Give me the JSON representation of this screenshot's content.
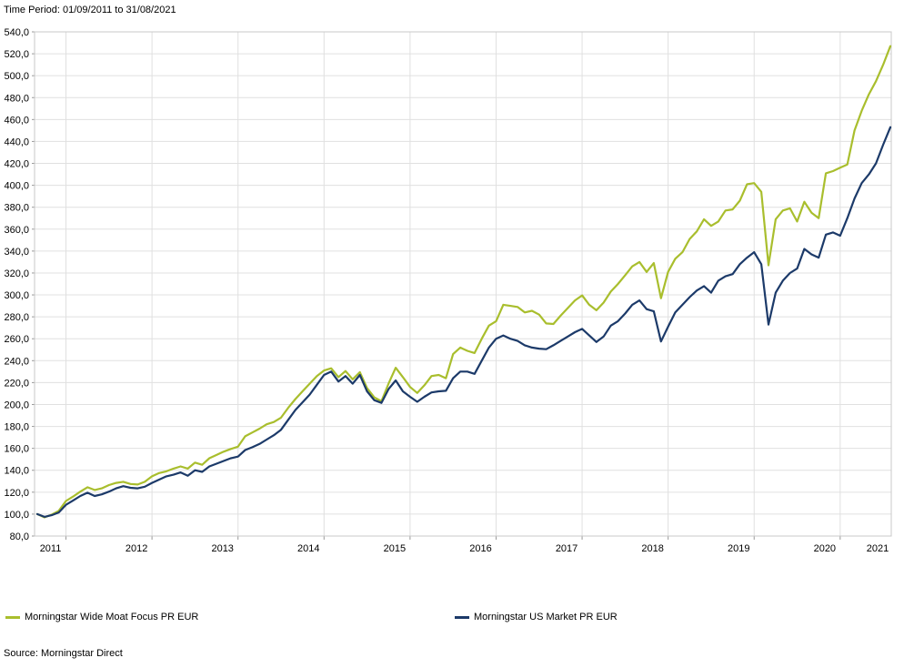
{
  "header": {
    "time_period_label": "Time Period: 01/09/2011 to 31/08/2021"
  },
  "source": {
    "label": "Source: Morningstar Direct"
  },
  "colors": {
    "wide_moat": "#a9be2d",
    "us_market": "#1c3a69",
    "gridline": "#e0e0e0",
    "plot_border": "#c8c8c8",
    "tick": "#999999",
    "text": "#000000"
  },
  "legend": [
    {
      "label": "Morningstar Wide Moat Focus PR EUR",
      "color": "#a9be2d"
    },
    {
      "label": "Morningstar US Market PR EUR",
      "color": "#1c3a69"
    }
  ],
  "chart_data": {
    "type": "line",
    "title": "Time Period: 01/09/2011 to 31/08/2021",
    "x_start": "2011-09",
    "x_end": "2021-08",
    "x_frequency": "monthly",
    "x_tick_labels": [
      "2011",
      "2012",
      "2013",
      "2014",
      "2015",
      "2016",
      "2017",
      "2018",
      "2019",
      "2020",
      "2021"
    ],
    "ylim": [
      80,
      540
    ],
    "y_tick_step": 20,
    "y_tick_labels": [
      "540,0",
      "520,0",
      "500,0",
      "480,0",
      "460,0",
      "440,0",
      "420,0",
      "400,0",
      "380,0",
      "360,0",
      "340,0",
      "320,0",
      "300,0",
      "280,0",
      "260,0",
      "240,0",
      "220,0",
      "200,0",
      "180,0",
      "160,0",
      "140,0",
      "120,0",
      "100,0",
      "80,0"
    ],
    "grid": true,
    "legend_position": "bottom",
    "series": [
      {
        "name": "Morningstar Wide Moat Focus PR EUR",
        "color": "#a9be2d",
        "values": [
          100,
          97,
          99.5,
          103,
          112,
          116,
          120.5,
          124.5,
          122,
          123.5,
          126.5,
          128.5,
          129.5,
          127.5,
          127,
          129.5,
          134.5,
          137.5,
          139,
          141.5,
          143.5,
          141.5,
          147,
          145,
          151,
          154,
          157,
          159.5,
          161.5,
          171,
          174.5,
          178,
          182,
          184,
          188,
          197,
          205,
          212,
          219,
          226,
          231,
          233,
          225,
          230.5,
          223,
          229.5,
          215,
          206.5,
          203,
          219,
          233.5,
          225,
          216,
          210.5,
          217.5,
          226,
          227,
          224,
          246,
          252,
          249,
          247,
          260,
          272,
          276,
          291,
          290,
          289,
          284,
          285.5,
          282,
          274,
          273.5,
          281,
          288,
          295,
          299.5,
          291,
          286,
          293,
          303,
          310,
          318,
          326,
          330,
          321,
          329,
          297,
          321,
          333,
          339,
          351,
          358,
          369,
          363,
          367,
          377,
          378,
          386,
          401,
          402,
          394,
          327,
          369,
          377,
          379,
          367,
          385,
          375,
          370,
          411,
          413,
          416,
          419,
          450,
          468,
          483,
          495,
          510,
          527
        ]
      },
      {
        "name": "Morningstar US Market PR EUR",
        "color": "#1c3a69",
        "values": [
          100,
          97.5,
          99,
          101.5,
          108.5,
          112.5,
          116.5,
          119.5,
          116.5,
          118,
          120.5,
          123.5,
          125.5,
          124,
          123.5,
          125,
          128.5,
          131.5,
          134.5,
          136,
          138,
          135,
          140,
          138.5,
          143.5,
          146,
          148.5,
          151,
          152.5,
          158.5,
          161,
          164,
          168,
          172,
          177,
          186,
          195,
          202,
          209,
          218,
          227,
          230,
          221,
          226,
          219,
          227,
          212,
          204,
          201.5,
          214,
          222,
          212,
          207,
          202.5,
          207,
          211,
          212,
          212.5,
          224,
          230,
          230,
          228,
          240,
          252,
          260,
          263,
          260,
          258,
          254,
          252,
          251,
          250.5,
          254,
          258,
          262,
          266,
          269,
          263,
          257,
          262,
          272,
          276,
          283,
          291,
          295,
          287,
          285,
          257.5,
          271,
          284,
          291,
          298,
          304,
          308,
          302,
          313,
          317,
          319,
          328,
          334,
          339,
          328,
          273,
          302,
          313,
          320,
          324,
          342,
          337,
          334,
          355,
          357,
          354,
          370,
          388,
          402,
          410,
          420,
          437,
          453
        ]
      }
    ]
  }
}
